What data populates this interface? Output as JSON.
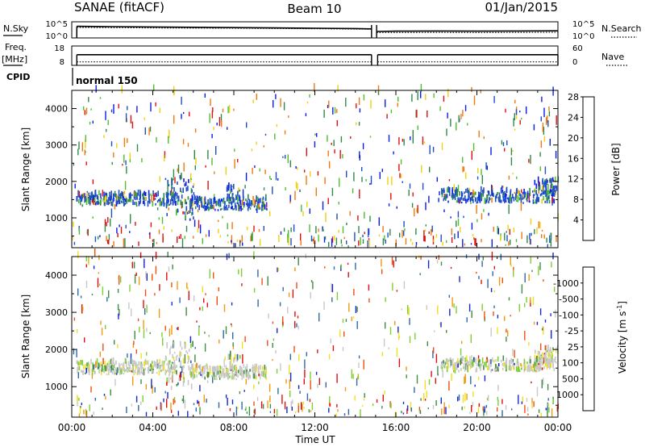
{
  "header": {
    "station": "SANAE (fitACF)",
    "beam": "Beam 10",
    "date": "01/Jan/2015"
  },
  "chart_data": [
    {
      "type": "line",
      "panel": "noise",
      "left_label": "N.Sky",
      "right_label": "N.Search",
      "left_ticks": [
        "10^5",
        "10^0"
      ],
      "right_ticks": [
        "10^5",
        "10^0"
      ],
      "series": [
        {
          "name": "N.Sky",
          "style": "solid",
          "x": [
            0.25,
            2,
            4,
            6,
            8,
            10,
            12,
            14,
            14.8,
            15.05,
            16,
            18,
            20,
            22,
            24
          ],
          "y": [
            0.72,
            0.7,
            0.68,
            0.66,
            0.64,
            0.62,
            0.6,
            0.58,
            0.56,
            0.4,
            0.42,
            0.43,
            0.42,
            0.43,
            0.44
          ]
        },
        {
          "name": "N.Search",
          "style": "dotted",
          "x": [
            0.25,
            4,
            8,
            12,
            14.8,
            15.05,
            18,
            20,
            24
          ],
          "y": [
            0.65,
            0.62,
            0.6,
            0.57,
            0.54,
            0.33,
            0.34,
            0.33,
            0.35
          ]
        }
      ]
    },
    {
      "type": "line",
      "panel": "frequency",
      "left_label": "Freq.",
      "left_unit": "[MHz]",
      "right_label": "Nave",
      "left_ticks": [
        "18",
        "8"
      ],
      "right_ticks": [
        "60",
        "0"
      ],
      "series": [
        {
          "name": "Freq.",
          "style": "solid",
          "segments": [
            [
              0.25,
              14.8
            ],
            [
              15.1,
              24
            ]
          ],
          "level": 0.55
        },
        {
          "name": "Nave",
          "style": "dotted",
          "segments": [
            [
              0.25,
              14.8
            ],
            [
              15.1,
              24
            ]
          ],
          "level": 0.18
        }
      ]
    },
    {
      "type": "heatmap",
      "panel": "cpid",
      "label": "CPID",
      "text": "normal 150"
    },
    {
      "type": "heatmap",
      "panel": "power",
      "xlim": [
        0,
        24
      ],
      "ylim": [
        180,
        4500
      ],
      "ylabel": "Slant Range [km]",
      "y_ticks": [
        1000,
        2000,
        3000,
        4000
      ],
      "colorbar": {
        "label": "Power [dB]",
        "ticks": [
          "4",
          "8",
          "12",
          "16",
          "20",
          "24",
          "28"
        ],
        "colors": [
          "#0a1cf0",
          "#1f4fc8",
          "#2f8a4a",
          "#4fc02a",
          "#f0d010",
          "#f07810",
          "#e01010"
        ]
      },
      "bands": [
        {
          "x0": 0.2,
          "x1": 5.2,
          "y0": 1300,
          "y1": 1620,
          "density": 0.55
        },
        {
          "x0": 4.6,
          "x1": 6.1,
          "y0": 900,
          "y1": 2100,
          "density": 0.45
        },
        {
          "x0": 5.8,
          "x1": 9.6,
          "y0": 1180,
          "y1": 1500,
          "density": 0.55
        },
        {
          "x0": 7.6,
          "x1": 8.3,
          "y0": 1400,
          "y1": 1850,
          "density": 0.4
        },
        {
          "x0": 18.2,
          "x1": 23.8,
          "y0": 1380,
          "y1": 1700,
          "density": 0.5
        },
        {
          "x0": 22.8,
          "x1": 24.0,
          "y0": 1600,
          "y1": 2000,
          "density": 0.5
        }
      ]
    },
    {
      "type": "heatmap",
      "panel": "velocity",
      "xlim": [
        0,
        24
      ],
      "ylim": [
        180,
        4500
      ],
      "ylabel": "Slant Range [km]",
      "y_ticks": [
        1000,
        2000,
        3000,
        4000
      ],
      "colorbar": {
        "label": "Velocity [m s",
        "label_superscript": "-1",
        "label_end": "]",
        "ticks": [
          "1000",
          "500",
          "100",
          "25",
          "-25",
          "-100",
          "-500",
          "-1000"
        ],
        "colors": [
          "#1428d0",
          "#2f6aa8",
          "#3c8e42",
          "#7ed030",
          "#c8c8c8",
          "#f0e020",
          "#f09a10",
          "#f05010",
          "#e01010"
        ]
      },
      "bands": [
        {
          "x0": 0.2,
          "x1": 5.2,
          "y0": 1300,
          "y1": 1620,
          "density": 0.55
        },
        {
          "x0": 4.6,
          "x1": 6.1,
          "y0": 900,
          "y1": 2100,
          "density": 0.45
        },
        {
          "x0": 5.8,
          "x1": 9.6,
          "y0": 1180,
          "y1": 1500,
          "density": 0.55
        },
        {
          "x0": 7.6,
          "x1": 8.3,
          "y0": 1400,
          "y1": 1850,
          "density": 0.4
        },
        {
          "x0": 18.2,
          "x1": 23.8,
          "y0": 1380,
          "y1": 1700,
          "density": 0.5
        },
        {
          "x0": 22.8,
          "x1": 24.0,
          "y0": 1600,
          "y1": 2000,
          "density": 0.5
        }
      ]
    }
  ],
  "x_axis": {
    "label": "Time UT",
    "ticks": [
      "00:00",
      "04:00",
      "08:00",
      "12:00",
      "16:00",
      "20:00",
      "00:00"
    ]
  }
}
